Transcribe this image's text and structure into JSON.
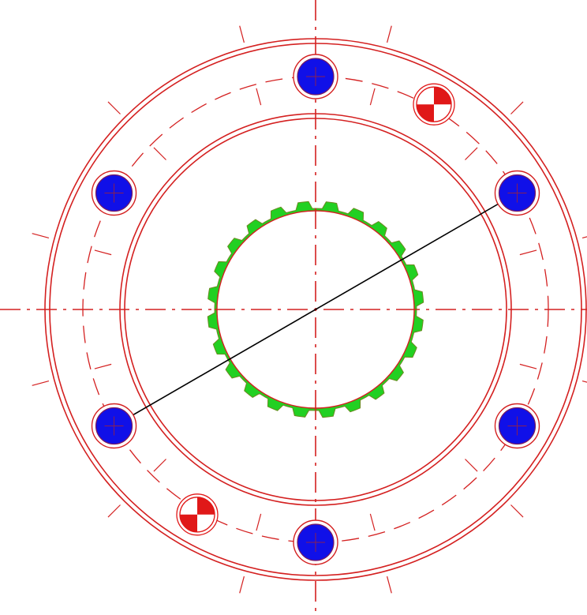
{
  "drawing": {
    "colors": {
      "outline": "#d42020",
      "bolt_hole_fill": "#1010e8",
      "spline": "#22d022",
      "dowel": "#e01818",
      "diagonal": "#000000",
      "background": "#ffffff"
    },
    "bolt_holes": {
      "count": 6,
      "angles_deg": [
        90,
        30,
        -30,
        -90,
        -150,
        150
      ],
      "icon": "bolt-hole-icon"
    },
    "dowel_pins": {
      "count": 2,
      "angles_deg": [
        60,
        -120
      ],
      "icon": "dowel-pin-icon"
    },
    "spline": {
      "teeth": 24
    }
  }
}
